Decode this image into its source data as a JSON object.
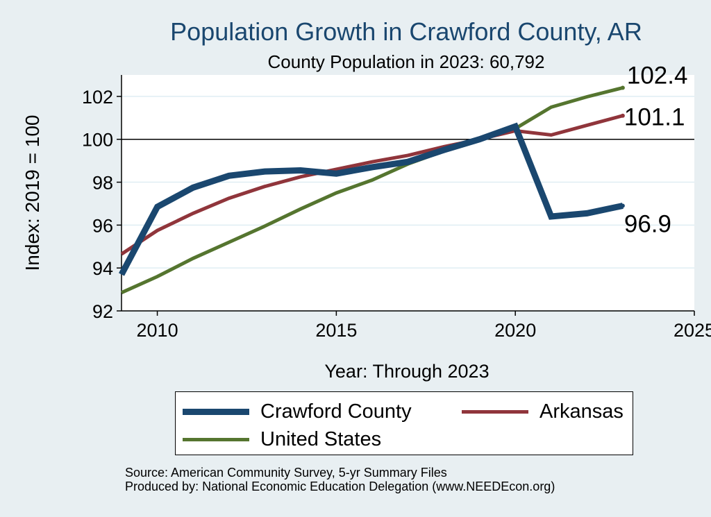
{
  "chart_data": {
    "type": "line",
    "title": "Population Growth in Crawford County, AR",
    "subtitle": "County Population in 2023: 60,792",
    "xlabel": "Year: Through 2023",
    "ylabel": "Index: 2019 = 100",
    "xlim": [
      2009,
      2025
    ],
    "ylim": [
      92,
      103
    ],
    "x_ticks": [
      2010,
      2015,
      2020,
      2025
    ],
    "y_ticks": [
      92,
      94,
      96,
      98,
      100,
      102
    ],
    "reference_line": 100,
    "grid": true,
    "x": [
      2009,
      2010,
      2011,
      2012,
      2013,
      2014,
      2015,
      2016,
      2017,
      2018,
      2019,
      2020,
      2021,
      2022,
      2023
    ],
    "series": [
      {
        "name": "Crawford  County",
        "color": "#1a476f",
        "values": [
          93.7,
          96.85,
          97.75,
          98.3,
          98.5,
          98.55,
          98.4,
          98.7,
          98.95,
          99.5,
          100.0,
          100.6,
          96.4,
          96.55,
          96.9
        ],
        "end_label": "96.9"
      },
      {
        "name": "Arkansas",
        "color": "#90353b",
        "values": [
          94.65,
          95.75,
          96.55,
          97.25,
          97.8,
          98.25,
          98.6,
          98.95,
          99.25,
          99.65,
          100.0,
          100.4,
          100.2,
          100.65,
          101.1
        ],
        "end_label": "101.1"
      },
      {
        "name": "United States",
        "color": "#55752f",
        "values": [
          92.85,
          93.6,
          94.45,
          95.2,
          95.95,
          96.75,
          97.5,
          98.1,
          98.85,
          99.45,
          100.0,
          100.5,
          101.5,
          101.98,
          102.4
        ],
        "end_label": "102.4"
      }
    ]
  },
  "legend": {
    "items": [
      "Crawford  County",
      "Arkansas",
      "United States"
    ]
  },
  "notes": {
    "source": "Source: American Community Survey, 5-yr Summary Files",
    "produced_by": "Produced by: National Economic Education Delegation (www.NEEDEcon.org)"
  },
  "colors": {
    "background": "#e8eff2",
    "plot_area": "#ffffff",
    "title": "#1a476f",
    "grid": "#dfeef3"
  }
}
